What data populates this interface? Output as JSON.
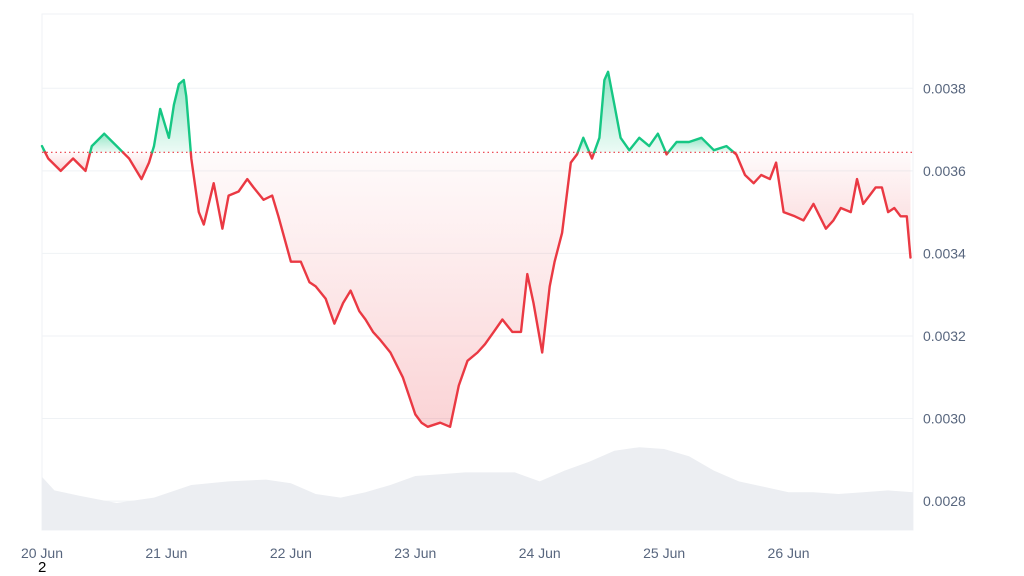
{
  "chart_data": {
    "type": "line",
    "title": "",
    "xlabel": "",
    "ylabel": "",
    "x_tick_labels": [
      "20 Jun",
      "21 Jun",
      "22 Jun",
      "23 Jun",
      "24 Jun",
      "25 Jun",
      "26 Jun"
    ],
    "y_tick_labels": [
      "0.0028",
      "0.0030",
      "0.0032",
      "0.0034",
      "0.0036",
      "0.0038"
    ],
    "y_ticks": [
      0.0028,
      0.003,
      0.0032,
      0.0034,
      0.0036,
      0.0038
    ],
    "ylim": [
      0.00273,
      0.00398
    ],
    "xlim": [
      0,
      7
    ],
    "baseline": 0.003645,
    "colors": {
      "above": "#16c784",
      "below": "#ea3943",
      "baseline": "#ea3943",
      "volume": "#eceef2",
      "grid": "#eff2f5",
      "axis": "#cfd6e4"
    },
    "series": [
      {
        "x": [
          0,
          0.05,
          0.15,
          0.25,
          0.35,
          0.4,
          0.5,
          0.6,
          0.7,
          0.8,
          0.86,
          0.9,
          0.95,
          1.02,
          1.06,
          1.1,
          1.14,
          1.16,
          1.2,
          1.26,
          1.3,
          1.38,
          1.45,
          1.5,
          1.58,
          1.65,
          1.7,
          1.78,
          1.85,
          1.9,
          2,
          2.08,
          2.15,
          2.2,
          2.28,
          2.35,
          2.42,
          2.48,
          2.55,
          2.6,
          2.66,
          2.72,
          2.8,
          2.9,
          3,
          3.05,
          3.1,
          3.2,
          3.28,
          3.35,
          3.42,
          3.5,
          3.56,
          3.63,
          3.7,
          3.78,
          3.85,
          3.9,
          3.95,
          4.02,
          4.08,
          4.12,
          4.18,
          4.25,
          4.3,
          4.35,
          4.42,
          4.48,
          4.52,
          4.55,
          4.6,
          4.65,
          4.72,
          4.8,
          4.88,
          4.95,
          5.02,
          5.1,
          5.2,
          5.3,
          5.4,
          5.5,
          5.58,
          5.65,
          5.72,
          5.78,
          5.85,
          5.9,
          5.96,
          6.05,
          6.12,
          6.2,
          6.3,
          6.36,
          6.42,
          6.5,
          6.55,
          6.6,
          6.65,
          6.7,
          6.75,
          6.8,
          6.85,
          6.9,
          6.95,
          6.98
        ],
        "y": [
          0.00366,
          0.00363,
          0.0036,
          0.00363,
          0.0036,
          0.00366,
          0.00369,
          0.00366,
          0.00363,
          0.00358,
          0.00362,
          0.00366,
          0.00375,
          0.00368,
          0.00376,
          0.00381,
          0.00382,
          0.00378,
          0.00363,
          0.0035,
          0.00347,
          0.00357,
          0.00346,
          0.00354,
          0.00355,
          0.00358,
          0.00356,
          0.00353,
          0.00354,
          0.00349,
          0.00338,
          0.00338,
          0.00333,
          0.00332,
          0.00329,
          0.00323,
          0.00328,
          0.00331,
          0.00326,
          0.00324,
          0.00321,
          0.00319,
          0.00316,
          0.0031,
          0.00301,
          0.00299,
          0.00298,
          0.00299,
          0.00298,
          0.00308,
          0.00314,
          0.00316,
          0.00318,
          0.00321,
          0.00324,
          0.00321,
          0.00321,
          0.00335,
          0.00328,
          0.00316,
          0.00332,
          0.00338,
          0.00345,
          0.00362,
          0.00364,
          0.00368,
          0.00363,
          0.00368,
          0.00382,
          0.00384,
          0.00376,
          0.00368,
          0.00365,
          0.00368,
          0.00366,
          0.00369,
          0.00364,
          0.00367,
          0.00367,
          0.00368,
          0.00365,
          0.00366,
          0.00364,
          0.00359,
          0.00357,
          0.00359,
          0.00358,
          0.00362,
          0.0035,
          0.00349,
          0.00348,
          0.00352,
          0.00346,
          0.00348,
          0.00351,
          0.0035,
          0.00358,
          0.00352,
          0.00354,
          0.00356,
          0.00356,
          0.0035,
          0.00351,
          0.00349,
          0.00349,
          0.00339
        ]
      }
    ],
    "volume": {
      "x": [
        0,
        0.1,
        0.3,
        0.6,
        0.9,
        1.2,
        1.5,
        1.8,
        2,
        2.2,
        2.4,
        2.6,
        2.8,
        3,
        3.2,
        3.4,
        3.6,
        3.8,
        4,
        4.2,
        4.4,
        4.6,
        4.8,
        5,
        5.2,
        5.4,
        5.6,
        5.8,
        6,
        6.2,
        6.4,
        6.6,
        6.8,
        7
      ],
      "y": [
        0.59,
        0.44,
        0.38,
        0.3,
        0.36,
        0.5,
        0.54,
        0.56,
        0.52,
        0.4,
        0.36,
        0.42,
        0.5,
        0.6,
        0.62,
        0.64,
        0.64,
        0.64,
        0.54,
        0.66,
        0.76,
        0.88,
        0.92,
        0.9,
        0.82,
        0.66,
        0.54,
        0.48,
        0.42,
        0.42,
        0.4,
        0.42,
        0.44,
        0.42
      ]
    }
  },
  "footer_label": "2"
}
